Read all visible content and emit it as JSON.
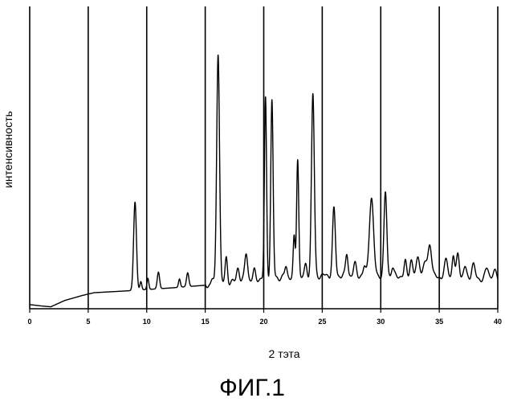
{
  "chart_data": {
    "type": "line",
    "xlabel": "2 тэта",
    "ylabel": "интенсивность",
    "figure_label": "ФИГ.1",
    "xlim": [
      0,
      40
    ],
    "ylim": [
      0,
      100
    ],
    "grid_x": true,
    "grid_y": false,
    "x_ticks": [
      0,
      5,
      10,
      15,
      20,
      25,
      30,
      35,
      40
    ],
    "x_tick_labels": [
      "0",
      "5",
      "10",
      "15",
      "20",
      "25",
      "30",
      "35",
      "40"
    ],
    "baseline": [
      [
        0,
        1.5
      ],
      [
        1,
        1
      ],
      [
        1.8,
        0.7
      ],
      [
        3,
        3
      ],
      [
        4.5,
        4.8
      ],
      [
        5.5,
        5.8
      ],
      [
        8.5,
        6.5
      ],
      [
        12,
        7.5
      ],
      [
        15,
        8.5
      ],
      [
        20,
        11
      ],
      [
        25,
        12
      ],
      [
        30,
        12
      ],
      [
        35,
        11.5
      ],
      [
        40,
        10.5
      ]
    ],
    "peaks": [
      [
        9.0,
        32,
        0.12
      ],
      [
        9.5,
        3,
        0.08
      ],
      [
        10.1,
        4,
        0.08
      ],
      [
        11.0,
        6,
        0.1
      ],
      [
        12.8,
        3,
        0.08
      ],
      [
        13.5,
        5,
        0.1
      ],
      [
        15.6,
        2,
        0.1
      ],
      [
        16.1,
        84,
        0.12
      ],
      [
        16.8,
        9,
        0.1
      ],
      [
        17.8,
        5,
        0.12
      ],
      [
        18.5,
        10,
        0.12
      ],
      [
        19.2,
        3,
        0.1
      ],
      [
        20.15,
        65,
        0.09
      ],
      [
        20.7,
        64,
        0.1
      ],
      [
        21.9,
        4,
        0.1
      ],
      [
        22.6,
        14,
        0.08
      ],
      [
        22.9,
        43,
        0.09
      ],
      [
        23.6,
        4,
        0.1
      ],
      [
        24.2,
        66,
        0.12
      ],
      [
        26.0,
        24,
        0.12
      ],
      [
        27.1,
        8,
        0.1
      ],
      [
        27.8,
        4,
        0.12
      ],
      [
        28.6,
        3,
        0.1
      ],
      [
        29.2,
        28,
        0.18
      ],
      [
        30.4,
        30,
        0.12
      ],
      [
        31.0,
        3,
        0.1
      ],
      [
        32.1,
        5,
        0.1
      ],
      [
        32.6,
        6,
        0.12
      ],
      [
        33.2,
        7,
        0.15
      ],
      [
        33.8,
        5,
        0.15
      ],
      [
        34.2,
        12,
        0.15
      ],
      [
        35.6,
        6,
        0.15
      ],
      [
        36.2,
        8,
        0.1
      ],
      [
        36.6,
        9,
        0.12
      ],
      [
        37.2,
        4,
        0.12
      ],
      [
        37.9,
        5,
        0.15
      ],
      [
        39.1,
        4,
        0.15
      ],
      [
        39.7,
        3,
        0.15
      ]
    ]
  }
}
